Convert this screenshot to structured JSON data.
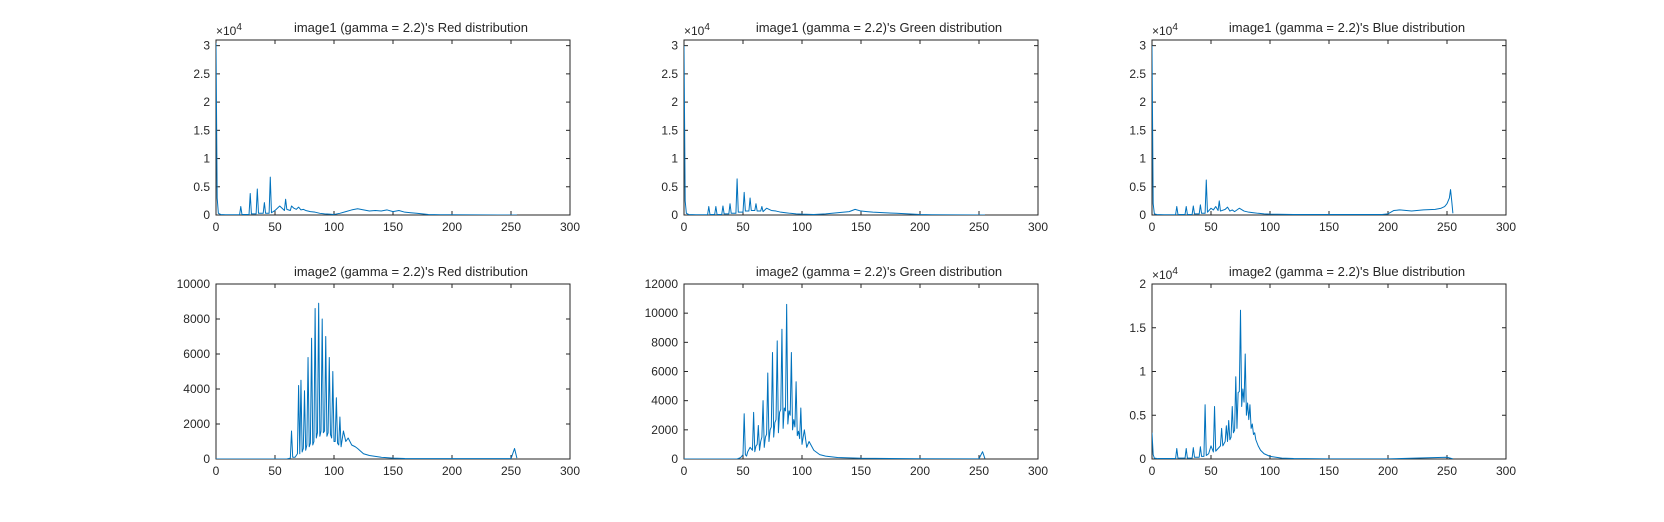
{
  "figure": {
    "background": "#ffffff",
    "axes_color": "#262626",
    "line_color": "#0072bd"
  },
  "chart_data": [
    {
      "id": "plot-1",
      "type": "line",
      "title": "image1 (gamma = 2.2)'s Red   distribution",
      "xlim": [
        0,
        300
      ],
      "ylim": [
        0,
        31000
      ],
      "xticks": [
        0,
        50,
        100,
        150,
        200,
        250,
        300
      ],
      "xtick_labels": [
        "0",
        "50",
        "100",
        "150",
        "200",
        "250",
        "300"
      ],
      "yticks": [
        0,
        5000,
        10000,
        15000,
        20000,
        25000,
        30000
      ],
      "ytick_labels": [
        "0",
        "0.5",
        "1",
        "1.5",
        "2",
        "2.5",
        "3"
      ],
      "y_exponent_label": "×10",
      "y_exponent_power": "4",
      "grid": false,
      "series": [
        {
          "x": [
            0,
            1,
            2,
            4,
            8,
            14,
            20,
            21,
            22,
            28,
            29,
            30,
            34,
            35,
            36,
            40,
            41,
            42,
            45,
            46,
            47,
            50,
            52,
            54,
            58,
            59,
            60,
            63,
            64,
            66,
            68,
            70,
            72,
            74,
            76,
            80,
            84,
            88,
            92,
            96,
            100,
            105,
            110,
            115,
            120,
            125,
            130,
            135,
            140,
            145,
            150,
            155,
            160,
            165,
            170,
            175,
            180,
            190,
            200,
            220,
            240,
            255
          ],
          "y": [
            30500,
            3000,
            300,
            100,
            50,
            50,
            50,
            1500,
            100,
            100,
            3800,
            200,
            200,
            4600,
            300,
            300,
            2200,
            300,
            300,
            6700,
            400,
            800,
            1200,
            1600,
            800,
            2800,
            1000,
            800,
            1600,
            1200,
            1000,
            1400,
            900,
            1000,
            800,
            600,
            500,
            300,
            200,
            150,
            100,
            300,
            600,
            900,
            1100,
            900,
            700,
            800,
            700,
            900,
            600,
            800,
            500,
            400,
            300,
            200,
            100,
            50,
            40,
            20,
            10,
            10
          ]
        }
      ]
    },
    {
      "id": "plot-2",
      "type": "line",
      "title": "image1 (gamma = 2.2)'s Green distribution",
      "xlim": [
        0,
        300
      ],
      "ylim": [
        0,
        31000
      ],
      "xticks": [
        0,
        50,
        100,
        150,
        200,
        250,
        300
      ],
      "xtick_labels": [
        "0",
        "50",
        "100",
        "150",
        "200",
        "250",
        "300"
      ],
      "yticks": [
        0,
        5000,
        10000,
        15000,
        20000,
        25000,
        30000
      ],
      "ytick_labels": [
        "0",
        "0.5",
        "1",
        "1.5",
        "2",
        "2.5",
        "3"
      ],
      "y_exponent_label": "×10",
      "y_exponent_power": "4",
      "grid": false,
      "series": [
        {
          "x": [
            0,
            1,
            2,
            4,
            10,
            20,
            21,
            22,
            26,
            27,
            28,
            32,
            33,
            34,
            38,
            39,
            40,
            44,
            45,
            46,
            50,
            51,
            52,
            55,
            56,
            57,
            60,
            61,
            62,
            65,
            66,
            67,
            70,
            74,
            78,
            82,
            86,
            90,
            95,
            100,
            110,
            120,
            130,
            140,
            145,
            150,
            155,
            160,
            170,
            180,
            190,
            200,
            210,
            230,
            255
          ],
          "y": [
            30000,
            2500,
            300,
            100,
            50,
            50,
            1500,
            100,
            100,
            1500,
            100,
            100,
            1600,
            200,
            200,
            2000,
            300,
            300,
            6400,
            500,
            500,
            4000,
            700,
            700,
            3000,
            800,
            800,
            2000,
            700,
            700,
            1500,
            600,
            1200,
            800,
            700,
            500,
            400,
            300,
            200,
            150,
            100,
            200,
            400,
            600,
            1000,
            700,
            600,
            500,
            400,
            300,
            200,
            100,
            50,
            20,
            10
          ]
        }
      ]
    },
    {
      "id": "plot-3",
      "type": "line",
      "title": "image1 (gamma = 2.2)'s Blue  distribution",
      "xlim": [
        0,
        300
      ],
      "ylim": [
        0,
        31000
      ],
      "xticks": [
        0,
        50,
        100,
        150,
        200,
        250,
        300
      ],
      "xtick_labels": [
        "0",
        "50",
        "100",
        "150",
        "200",
        "250",
        "300"
      ],
      "yticks": [
        0,
        5000,
        10000,
        15000,
        20000,
        25000,
        30000
      ],
      "ytick_labels": [
        "0",
        "0.5",
        "1",
        "1.5",
        "2",
        "2.5",
        "3"
      ],
      "y_exponent_label": "×10",
      "y_exponent_power": "4",
      "grid": false,
      "series": [
        {
          "x": [
            0,
            1,
            2,
            4,
            10,
            20,
            21,
            22,
            28,
            29,
            30,
            34,
            35,
            36,
            40,
            41,
            42,
            45,
            46,
            47,
            50,
            52,
            54,
            56,
            57,
            58,
            62,
            64,
            66,
            68,
            70,
            74,
            78,
            82,
            86,
            90,
            95,
            100,
            120,
            140,
            160,
            180,
            195,
            200,
            205,
            210,
            220,
            230,
            240,
            245,
            248,
            250,
            252,
            253,
            254,
            255
          ],
          "y": [
            30000,
            2000,
            200,
            100,
            50,
            50,
            1500,
            100,
            100,
            1500,
            100,
            100,
            1600,
            200,
            200,
            1800,
            300,
            300,
            6200,
            500,
            1200,
            900,
            1500,
            800,
            2500,
            700,
            1000,
            1400,
            700,
            900,
            600,
            1200,
            700,
            500,
            400,
            300,
            200,
            150,
            100,
            100,
            100,
            100,
            100,
            200,
            800,
            900,
            700,
            900,
            1000,
            1200,
            1500,
            2000,
            3000,
            4500,
            2500,
            300
          ]
        }
      ]
    },
    {
      "id": "plot-4",
      "type": "line",
      "title": "image2 (gamma = 2.2)'s Red   distribution",
      "xlim": [
        0,
        300
      ],
      "ylim": [
        0,
        10000
      ],
      "xticks": [
        0,
        50,
        100,
        150,
        200,
        250,
        300
      ],
      "xtick_labels": [
        "0",
        "50",
        "100",
        "150",
        "200",
        "250",
        "300"
      ],
      "yticks": [
        0,
        2000,
        4000,
        6000,
        8000,
        10000
      ],
      "ytick_labels": [
        "0",
        "2000",
        "4000",
        "6000",
        "8000",
        "10000"
      ],
      "grid": false,
      "series": [
        {
          "x": [
            0,
            30,
            60,
            63,
            64,
            65,
            67,
            69,
            70,
            71,
            72,
            73,
            74,
            75,
            76,
            77,
            78,
            79,
            80,
            81,
            82,
            83,
            84,
            85,
            86,
            87,
            88,
            89,
            90,
            91,
            92,
            93,
            94,
            95,
            96,
            97,
            98,
            99,
            100,
            101,
            102,
            103,
            104,
            105,
            106,
            108,
            110,
            112,
            115,
            118,
            120,
            125,
            130,
            140,
            150,
            160,
            200,
            250,
            253,
            255
          ],
          "y": [
            0,
            0,
            0,
            50,
            1600,
            100,
            100,
            300,
            4200,
            300,
            4500,
            400,
            600,
            3900,
            500,
            800,
            5800,
            700,
            900,
            6900,
            800,
            1000,
            8600,
            1200,
            1500,
            8900,
            1300,
            1600,
            8000,
            1500,
            1600,
            7000,
            1300,
            1500,
            5800,
            1400,
            1200,
            5000,
            1000,
            1000,
            3500,
            900,
            800,
            2400,
            700,
            1600,
            1000,
            1200,
            800,
            700,
            600,
            300,
            200,
            100,
            50,
            30,
            20,
            20,
            600,
            50
          ]
        }
      ]
    },
    {
      "id": "plot-5",
      "type": "line",
      "title": "image2 (gamma = 2.2)'s Green distribution",
      "xlim": [
        0,
        300
      ],
      "ylim": [
        0,
        12000
      ],
      "xticks": [
        0,
        50,
        100,
        150,
        200,
        250,
        300
      ],
      "xtick_labels": [
        "0",
        "50",
        "100",
        "150",
        "200",
        "250",
        "300"
      ],
      "yticks": [
        0,
        2000,
        4000,
        6000,
        8000,
        10000,
        12000
      ],
      "ytick_labels": [
        "0",
        "2000",
        "4000",
        "6000",
        "8000",
        "10000",
        "12000"
      ],
      "grid": false,
      "series": [
        {
          "x": [
            0,
            30,
            45,
            48,
            50,
            51,
            52,
            53,
            54,
            56,
            58,
            59,
            60,
            61,
            62,
            63,
            64,
            65,
            66,
            67,
            68,
            69,
            70,
            71,
            72,
            73,
            74,
            75,
            76,
            77,
            78,
            79,
            80,
            81,
            82,
            83,
            84,
            85,
            86,
            87,
            88,
            89,
            90,
            91,
            92,
            93,
            94,
            95,
            96,
            97,
            98,
            99,
            100,
            102,
            104,
            106,
            110,
            115,
            120,
            130,
            150,
            200,
            250,
            253,
            255
          ],
          "y": [
            0,
            0,
            0,
            100,
            300,
            3100,
            300,
            200,
            500,
            800,
            600,
            3200,
            500,
            900,
            1000,
            2300,
            600,
            1200,
            1500,
            4000,
            800,
            1500,
            1700,
            5900,
            1200,
            2000,
            2200,
            7300,
            1500,
            2500,
            2700,
            8100,
            1800,
            3200,
            3400,
            8900,
            2100,
            3500,
            3300,
            10600,
            2400,
            3300,
            3000,
            7300,
            2000,
            2700,
            2200,
            5300,
            1600,
            1900,
            1400,
            3500,
            1000,
            2000,
            800,
            1200,
            600,
            300,
            200,
            100,
            50,
            20,
            10,
            500,
            30
          ]
        }
      ]
    },
    {
      "id": "plot-6",
      "type": "line",
      "title": "image2 (gamma = 2.2)'s Blue  distribution",
      "xlim": [
        0,
        300
      ],
      "ylim": [
        0,
        20000
      ],
      "xticks": [
        0,
        50,
        100,
        150,
        200,
        250,
        300
      ],
      "xtick_labels": [
        "0",
        "50",
        "100",
        "150",
        "200",
        "250",
        "300"
      ],
      "yticks": [
        0,
        5000,
        10000,
        15000,
        20000
      ],
      "ytick_labels": [
        "0",
        "0.5",
        "1",
        "1.5",
        "2"
      ],
      "y_exponent_label": "×10",
      "y_exponent_power": "4",
      "grid": false,
      "series": [
        {
          "x": [
            0,
            1,
            2,
            5,
            10,
            20,
            21,
            22,
            28,
            29,
            30,
            34,
            35,
            36,
            40,
            41,
            42,
            44,
            45,
            46,
            47,
            48,
            50,
            52,
            53,
            54,
            56,
            58,
            59,
            60,
            62,
            63,
            64,
            65,
            66,
            67,
            68,
            69,
            70,
            71,
            72,
            73,
            74,
            75,
            76,
            77,
            78,
            79,
            80,
            81,
            82,
            83,
            84,
            85,
            86,
            87,
            88,
            90,
            92,
            95,
            100,
            110,
            120,
            150,
            200,
            250,
            255
          ],
          "y": [
            3000,
            500,
            100,
            50,
            50,
            50,
            1200,
            100,
            100,
            1200,
            100,
            100,
            1300,
            200,
            200,
            1400,
            300,
            300,
            6200,
            400,
            500,
            600,
            1500,
            800,
            6000,
            900,
            1200,
            1500,
            3500,
            1500,
            2000,
            3800,
            2000,
            4400,
            2200,
            2500,
            6000,
            3000,
            3300,
            9400,
            3500,
            7600,
            7700,
            17000,
            6000,
            8000,
            6500,
            12000,
            5000,
            6400,
            4500,
            6200,
            3500,
            4000,
            2800,
            3000,
            2200,
            1500,
            1000,
            600,
            300,
            100,
            50,
            20,
            10,
            200,
            20
          ]
        }
      ]
    }
  ]
}
